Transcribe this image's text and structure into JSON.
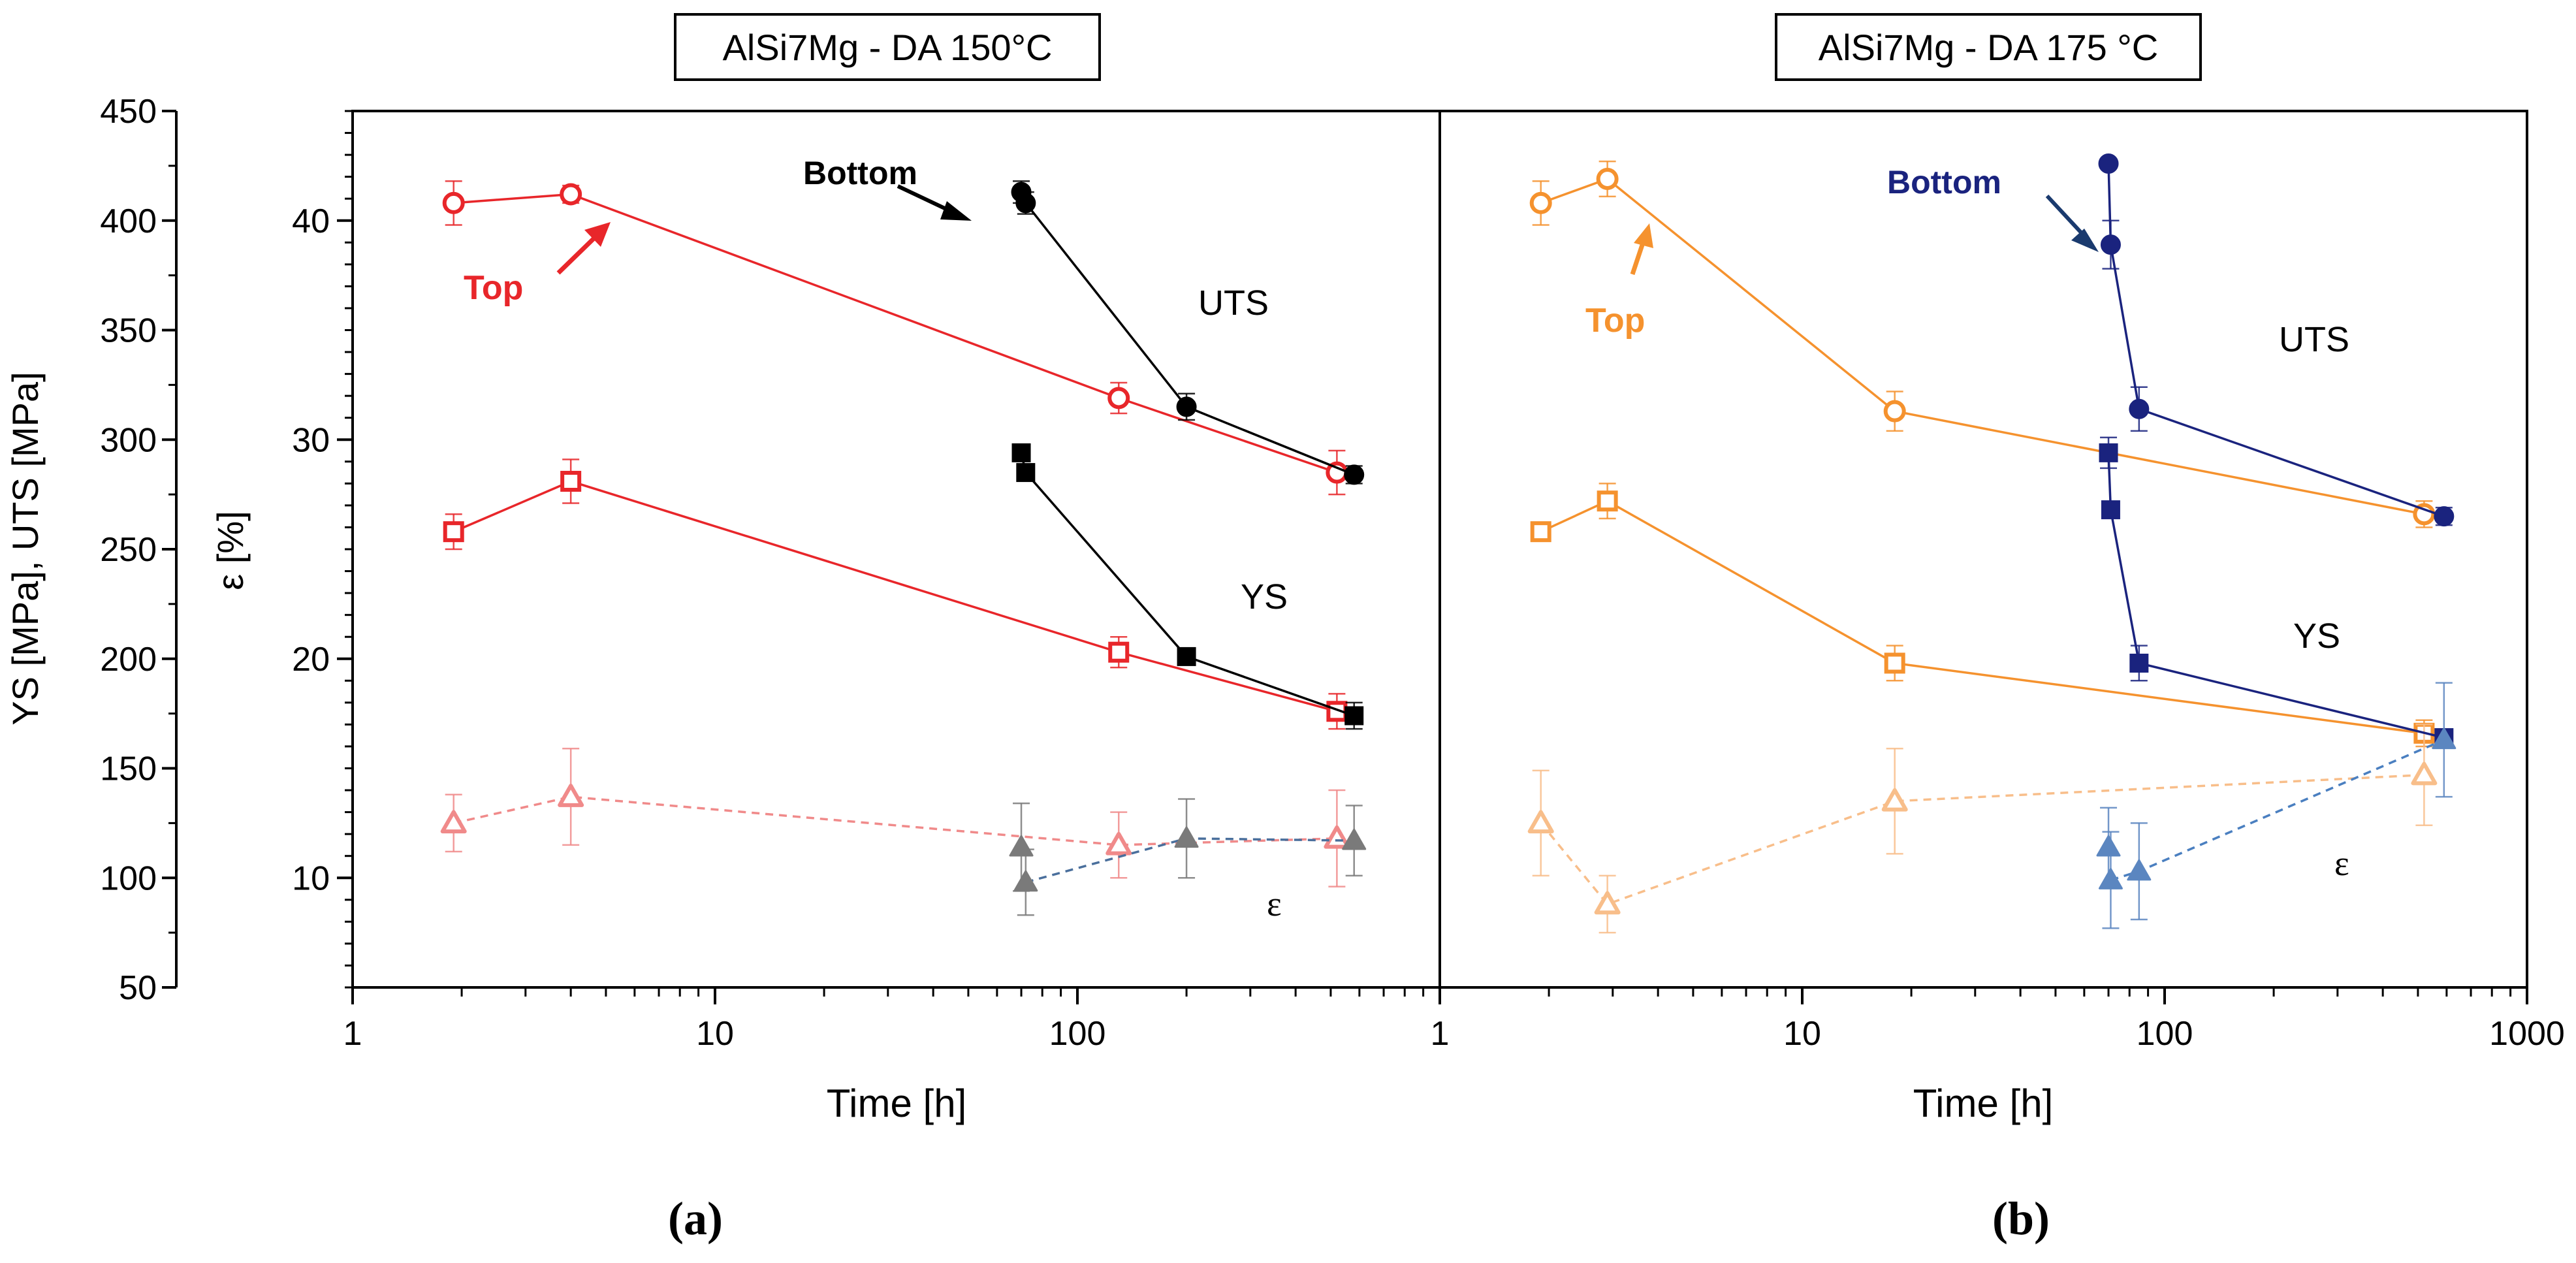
{
  "chart_data": {
    "type": "scatter",
    "shared": {
      "left_axis_label": "YS [MPa],  UTS [MPa]",
      "left_axis_ticks": [
        50,
        100,
        150,
        200,
        250,
        300,
        350,
        400,
        450
      ],
      "left_axis_range": [
        50,
        450
      ],
      "right_axis_label": "ε [%]",
      "right_axis_ticks": [
        10,
        20,
        30,
        40
      ],
      "right_axis_range": [
        5,
        45
      ],
      "x_scale": "log"
    },
    "panels": [
      {
        "id": "a",
        "title": "AlSi7Mg - DA 150°C",
        "caption": "(a)",
        "xlabel": "Time [h]",
        "xlim": [
          1,
          1000
        ],
        "x_tick_labels": [
          "1",
          "10",
          "100"
        ],
        "x_tick_values": [
          1,
          10,
          100
        ],
        "color_top": "#e8262a",
        "color_top_light": "#f08a8a",
        "color_bottom": "#000000",
        "color_bottom_eps": "#7a7a7a",
        "color_bottom_eps_line": "#4a6f9c",
        "annotations": {
          "top": "Top",
          "bottom": "Bottom",
          "uts": "UTS",
          "ys": "YS",
          "eps": "ε"
        },
        "series": [
          {
            "name": "Top UTS",
            "marker": "circle-open",
            "axis": "left",
            "line": "solid",
            "x": [
              1.9,
              4,
              130,
              520
            ],
            "y": [
              408,
              412,
              319,
              285
            ],
            "err": [
              10,
              4,
              7,
              10
            ]
          },
          {
            "name": "Top YS",
            "marker": "square-open",
            "axis": "left",
            "line": "solid",
            "x": [
              1.9,
              4,
              130,
              520
            ],
            "y": [
              258,
              281,
              203,
              176
            ],
            "err": [
              8,
              10,
              7,
              8
            ]
          },
          {
            "name": "Top ε",
            "marker": "triangle-open",
            "axis": "right",
            "line": "dashed",
            "x": [
              1.9,
              4,
              130,
              520
            ],
            "y": [
              12.5,
              13.7,
              11.5,
              11.8
            ],
            "err": [
              1.3,
              2.2,
              1.5,
              2.2
            ]
          },
          {
            "name": "Bottom UTS",
            "marker": "circle-filled",
            "axis": "left",
            "line": "solid",
            "x": [
              70,
              72,
              200,
              580
            ],
            "y": [
              413,
              408,
              315,
              284
            ],
            "err": [
              5,
              5,
              6,
              4
            ]
          },
          {
            "name": "Bottom YS",
            "marker": "square-filled",
            "axis": "left",
            "line": "solid",
            "x": [
              70,
              72,
              200,
              580
            ],
            "y": [
              294,
              285,
              201,
              174
            ],
            "err": [
              2,
              2,
              3,
              6
            ]
          },
          {
            "name": "Bottom ε",
            "marker": "triangle-filled",
            "axis": "right",
            "line": "dashed",
            "x": [
              70,
              72,
              200,
              580
            ],
            "y": [
              11.4,
              9.8,
              11.8,
              11.7
            ],
            "err": [
              2.0,
              1.5,
              1.8,
              1.6
            ]
          }
        ]
      },
      {
        "id": "b",
        "title": "AlSi7Mg - DA 175 °C",
        "caption": "(b)",
        "xlabel": "Time [h]",
        "xlim": [
          1,
          1000
        ],
        "x_tick_labels": [
          "1",
          "10",
          "100",
          "1000"
        ],
        "x_tick_values": [
          1,
          10,
          100,
          1000
        ],
        "color_top": "#f5922e",
        "color_top_light": "#f8be8a",
        "color_bottom": "#1a237e",
        "color_bottom_eps": "#5b86c0",
        "color_bottom_eps_line": "#4a7fc0",
        "annotations": {
          "top": "Top",
          "bottom": "Bottom",
          "uts": "UTS",
          "ys": "YS",
          "eps": "ε"
        },
        "series": [
          {
            "name": "Top UTS",
            "marker": "circle-open",
            "axis": "left",
            "line": "solid",
            "x": [
              1.9,
              2.9,
              18,
              520
            ],
            "y": [
              408,
              419,
              313,
              266
            ],
            "err": [
              10,
              8,
              9,
              6
            ]
          },
          {
            "name": "Top YS",
            "marker": "square-open",
            "axis": "left",
            "line": "solid",
            "x": [
              1.9,
              2.9,
              18,
              520
            ],
            "y": [
              258,
              272,
              198,
              166
            ],
            "err": [
              2,
              8,
              8,
              6
            ]
          },
          {
            "name": "Top ε",
            "marker": "triangle-open",
            "axis": "right",
            "line": "dashed",
            "x": [
              1.9,
              2.9,
              18,
              520
            ],
            "y": [
              12.5,
              8.8,
              13.5,
              14.7
            ],
            "err": [
              2.4,
              1.3,
              2.4,
              2.3
            ]
          },
          {
            "name": "Bottom UTS",
            "marker": "circle-filled",
            "axis": "left",
            "line": "solid",
            "x": [
              70,
              71,
              85,
              590
            ],
            "y": [
              426,
              389,
              314,
              265
            ],
            "err": [
              0,
              11,
              10,
              4
            ]
          },
          {
            "name": "Bottom YS",
            "marker": "square-filled",
            "axis": "left",
            "line": "solid",
            "x": [
              70,
              71,
              85,
              590
            ],
            "y": [
              294,
              268,
              198,
              164
            ],
            "err": [
              7,
              3,
              8,
              3
            ]
          },
          {
            "name": "Bottom ε",
            "marker": "triangle-filled",
            "axis": "right",
            "line": "dashed",
            "x": [
              70,
              71,
              85,
              590
            ],
            "y": [
              11.4,
              9.9,
              10.3,
              16.3
            ],
            "err": [
              1.8,
              2.2,
              2.2,
              2.6
            ]
          }
        ]
      }
    ]
  }
}
